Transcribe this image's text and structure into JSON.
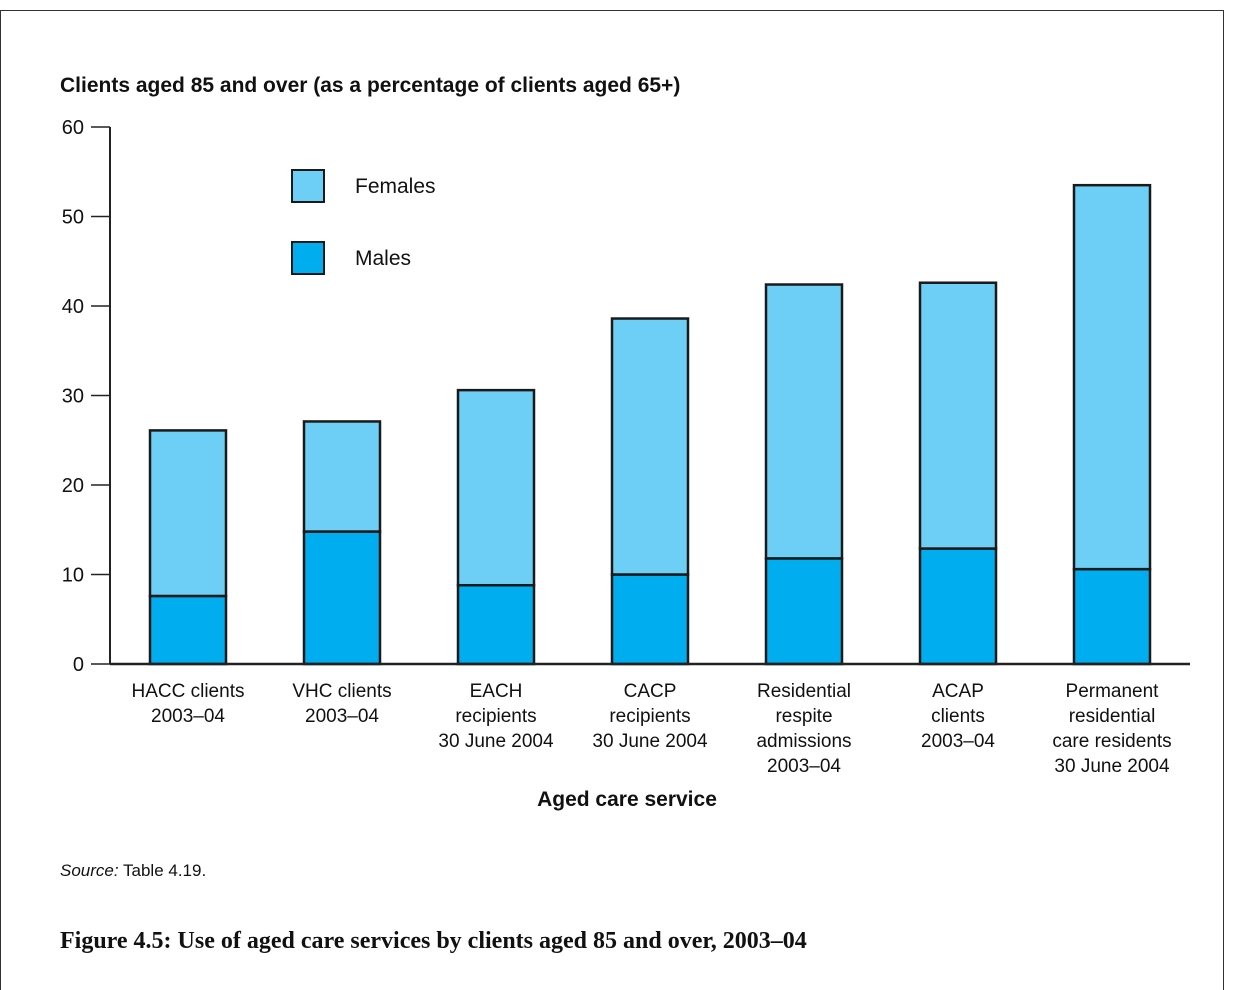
{
  "figure": {
    "caption": "Figure 4.5: Use of aged care services by clients aged 85 and over, 2003–04",
    "source_label": "Source:",
    "source_text": " Table 4.19."
  },
  "chart_data": {
    "type": "bar",
    "stacked": true,
    "ylabel": "Clients aged 85 and over (as a percentage of clients aged 65+)",
    "xlabel": "Aged care service",
    "ylim": [
      0,
      60
    ],
    "yticks": [
      0,
      10,
      20,
      30,
      40,
      50,
      60
    ],
    "grid": false,
    "legend_position": "top-left",
    "categories": [
      [
        "HACC clients",
        "2003–04"
      ],
      [
        "VHC clients",
        "2003–04"
      ],
      [
        "EACH",
        "recipients",
        "30 June 2004"
      ],
      [
        "CACP",
        "recipients",
        "30 June 2004"
      ],
      [
        "Residential",
        "respite",
        "admissions",
        "2003–04"
      ],
      [
        "ACAP",
        "clients",
        "2003–04"
      ],
      [
        "Permanent",
        "residential",
        "care residents",
        "30 June 2004"
      ]
    ],
    "series": [
      {
        "name": "Males",
        "color": "#00aeef",
        "values": [
          7.6,
          14.8,
          8.8,
          10.0,
          11.8,
          12.9,
          10.6
        ]
      },
      {
        "name": "Females",
        "color": "#6dcff6",
        "values": [
          18.5,
          12.3,
          21.8,
          28.6,
          30.6,
          29.7,
          42.9
        ]
      }
    ]
  }
}
